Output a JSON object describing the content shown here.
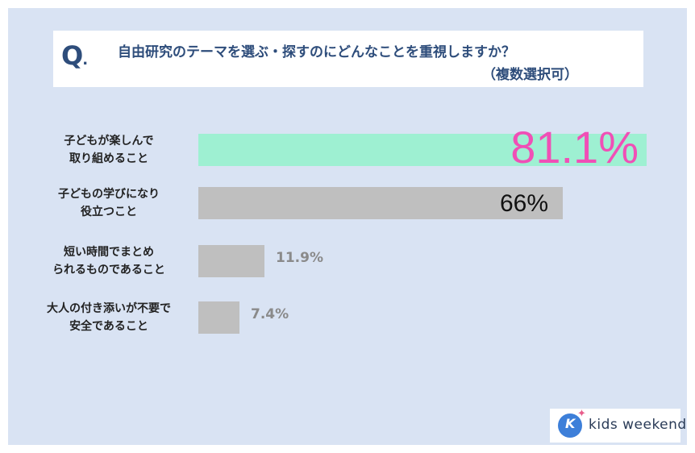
{
  "question": {
    "mark": "Q",
    "mark_dot": ".",
    "line1": "自由研究のテーマを選ぶ・探すのにどんなことを重視しますか？",
    "line2": "（複数選択可）"
  },
  "chart_data": {
    "type": "bar",
    "orientation": "horizontal",
    "categories": [
      [
        "子どもが楽しんで",
        "取り組めること"
      ],
      [
        "子どもの学びになり",
        "役立つこと"
      ],
      [
        "短い時間でまとめ",
        "られるものであること"
      ],
      [
        "大人の付き添いが不要で",
        "安全であること"
      ]
    ],
    "values": [
      81.1,
      66,
      11.9,
      7.4
    ],
    "value_labels": [
      "81.1%",
      "66%",
      "11.9%",
      "7.4%"
    ],
    "xlim": [
      0,
      81.1
    ],
    "grid": false,
    "legend": "none",
    "colors": {
      "bar_top": "#9ef0d2",
      "bar_other": "#bfbfbf",
      "label_top": "#f04fb6",
      "label_second": "#111111",
      "label_other": "#8a8a8a"
    }
  },
  "logo": {
    "initial": "K",
    "text": "kids weekend"
  }
}
